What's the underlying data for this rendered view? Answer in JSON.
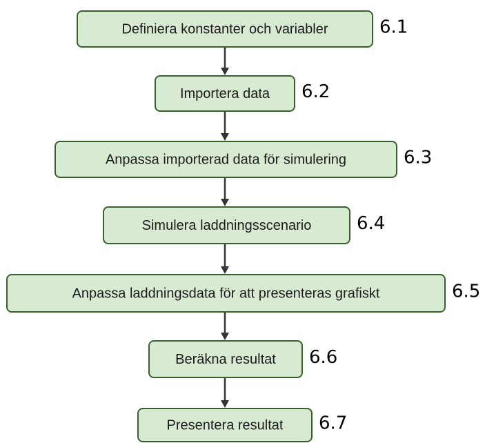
{
  "nodes": [
    {
      "label": "Definiera konstanter och variabler",
      "number": "6.1"
    },
    {
      "label": "Importera data",
      "number": "6.2"
    },
    {
      "label": "Anpassa importerad data för simulering",
      "number": "6.3"
    },
    {
      "label": "Simulera laddningsscenario",
      "number": "6.4"
    },
    {
      "label": "Anpassa laddningsdata för att presenteras grafiskt",
      "number": "6.5"
    },
    {
      "label": "Beräkna resultat",
      "number": "6.6"
    },
    {
      "label": "Presentera resultat",
      "number": "6.7"
    }
  ]
}
